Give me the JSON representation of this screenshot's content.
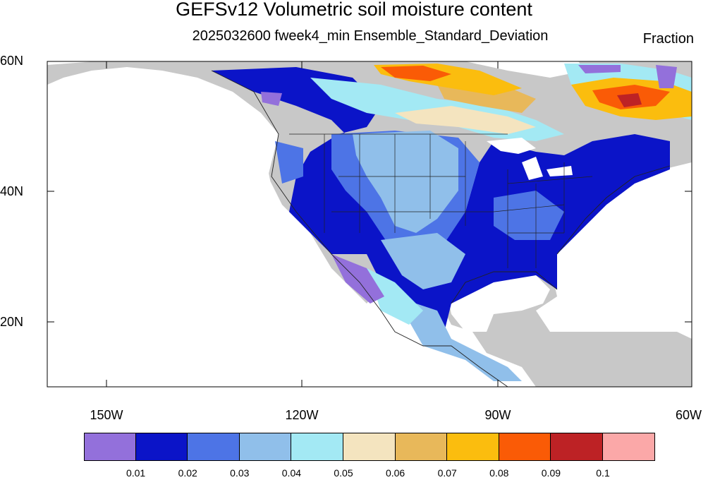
{
  "title": "GEFSv12 Volumetric soil moisture content",
  "subtitle": "2025032600 fweek4_min Ensemble_Standard_Deviation",
  "units": "Fraction",
  "lon_ticks": [
    "150W",
    "120W",
    "90W",
    "60W"
  ],
  "lat_ticks": [
    "60N",
    "40N",
    "20N"
  ],
  "colorbar": {
    "labels": [
      "0.01",
      "0.02",
      "0.03",
      "0.04",
      "0.05",
      "0.06",
      "0.07",
      "0.08",
      "0.09",
      "0.1"
    ],
    "colors": [
      "#9370db",
      "#0b14c8",
      "#4d74e6",
      "#90bfea",
      "#a3e9f4",
      "#f4e4bf",
      "#e8b85a",
      "#fbbd0e",
      "#fa5b06",
      "#bd2225",
      "#fba8a8"
    ]
  },
  "land_color": "#c8c8c8"
}
